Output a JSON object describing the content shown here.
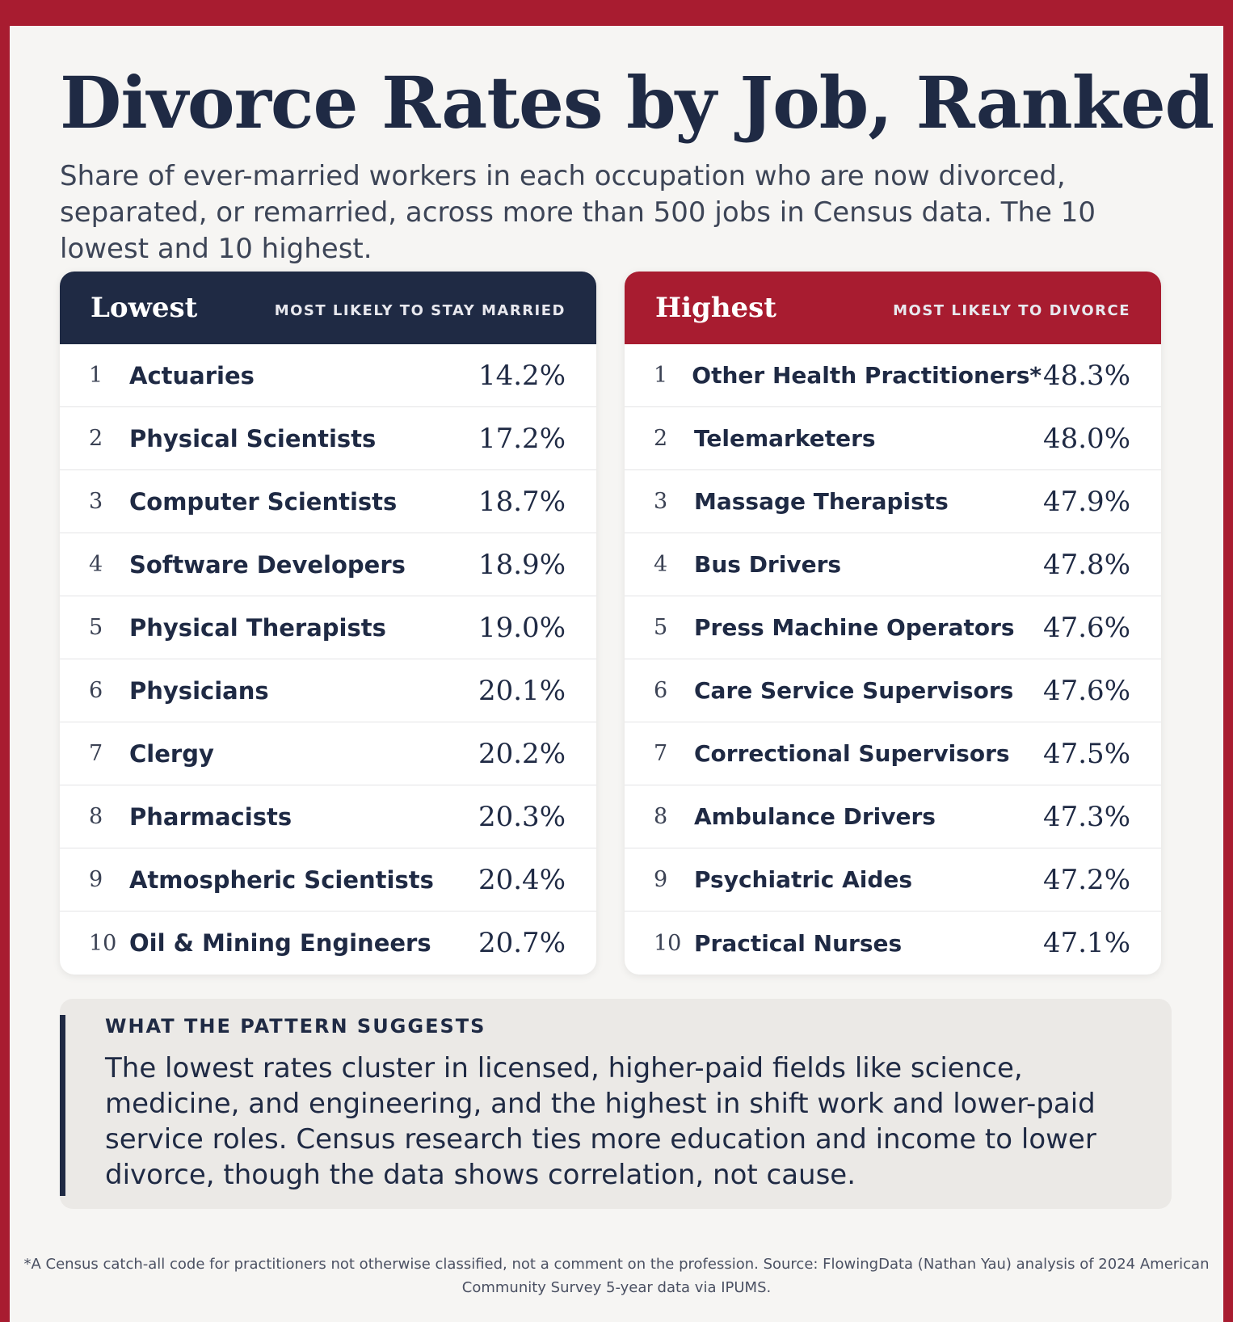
{
  "title": "Divorce Rates by Job, Ranked",
  "subtitle": "Share of ever-married workers in each occupation who are now divorced, separated, or remarried, across more than 500 jobs in Census data. The 10 lowest and 10 highest.",
  "colors": {
    "brand_red": "#a81c30",
    "navy": "#1f2a44",
    "background": "#f6f5f3"
  },
  "chart_data": [
    {
      "type": "table",
      "title": "Lowest",
      "subtitle": "MOST LIKELY TO STAY MARRIED",
      "header_color": "#1f2a44",
      "rows": [
        {
          "rank": "1",
          "job": "Actuaries",
          "value": "14.2%"
        },
        {
          "rank": "2",
          "job": "Physical Scientists",
          "value": "17.2%"
        },
        {
          "rank": "3",
          "job": "Computer Scientists",
          "value": "18.7%"
        },
        {
          "rank": "4",
          "job": "Software Developers",
          "value": "18.9%"
        },
        {
          "rank": "5",
          "job": "Physical Therapists",
          "value": "19.0%"
        },
        {
          "rank": "6",
          "job": "Physicians",
          "value": "20.1%"
        },
        {
          "rank": "7",
          "job": "Clergy",
          "value": "20.2%"
        },
        {
          "rank": "8",
          "job": "Pharmacists",
          "value": "20.3%"
        },
        {
          "rank": "9",
          "job": "Atmospheric Scientists",
          "value": "20.4%"
        },
        {
          "rank": "10",
          "job": "Oil & Mining Engineers",
          "value": "20.7%"
        }
      ]
    },
    {
      "type": "table",
      "title": "Highest",
      "subtitle": "MOST LIKELY TO DIVORCE",
      "header_color": "#a81c30",
      "rows": [
        {
          "rank": "1",
          "job": "Other Health Practitioners*",
          "value": "48.3%"
        },
        {
          "rank": "2",
          "job": "Telemarketers",
          "value": "48.0%"
        },
        {
          "rank": "3",
          "job": "Massage Therapists",
          "value": "47.9%"
        },
        {
          "rank": "4",
          "job": "Bus Drivers",
          "value": "47.8%"
        },
        {
          "rank": "5",
          "job": "Press Machine Operators",
          "value": "47.6%"
        },
        {
          "rank": "6",
          "job": "Care Service Supervisors",
          "value": "47.6%"
        },
        {
          "rank": "7",
          "job": "Correctional Supervisors",
          "value": "47.5%"
        },
        {
          "rank": "8",
          "job": "Ambulance Drivers",
          "value": "47.3%"
        },
        {
          "rank": "9",
          "job": "Psychiatric Aides",
          "value": "47.2%"
        },
        {
          "rank": "10",
          "job": "Practical Nurses",
          "value": "47.1%"
        }
      ]
    }
  ],
  "insight": {
    "label": "WHAT THE PATTERN SUGGESTS",
    "text": "The lowest rates cluster in licensed, higher-paid fields like science, medicine, and engineering, and the highest in shift work and lower-paid service roles. Census research ties more education and income to lower divorce, though the data shows correlation, not cause."
  },
  "footnote": "*A Census catch-all code for practitioners not otherwise classified, not a comment on the profession. Source: FlowingData (Nathan Yau) analysis of 2024 American Community Survey 5-year data via IPUMS."
}
